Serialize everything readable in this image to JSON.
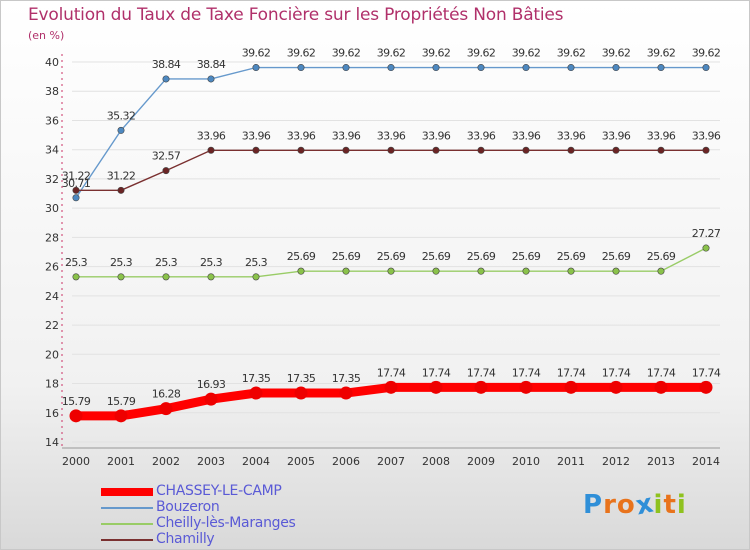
{
  "title": "Evolution du Taux de Taxe Foncière sur les Propriétés Non Bâties",
  "unit_label": "(en %)",
  "brand": {
    "letters": [
      "P",
      "r",
      "o",
      "x",
      "i",
      "t",
      "i"
    ],
    "colors": [
      "#2f8fd8",
      "#e8731c",
      "#e8731c",
      "#2f8fd8",
      "#8fc21f",
      "#e8731c",
      "#8fc21f"
    ]
  },
  "chart_data": {
    "type": "line",
    "title": "Evolution du Taux de Taxe Foncière sur les Propriétés Non Bâties",
    "ylabel": "(en %)",
    "xlabel": "",
    "ylim": [
      14,
      40
    ],
    "yticks": [
      14,
      16,
      18,
      20,
      22,
      24,
      26,
      28,
      30,
      32,
      34,
      36,
      38,
      40
    ],
    "categories": [
      "2000",
      "2001",
      "2002",
      "2003",
      "2004",
      "2005",
      "2006",
      "2007",
      "2008",
      "2009",
      "2010",
      "2011",
      "2012",
      "2013",
      "2014"
    ],
    "series": [
      {
        "name": "Bouzeron",
        "color": "#6699cc",
        "marker": "#4d88c0",
        "thick": false,
        "values": [
          30.71,
          35.32,
          38.84,
          38.84,
          39.62,
          39.62,
          39.62,
          39.62,
          39.62,
          39.62,
          39.62,
          39.62,
          39.62,
          39.62,
          39.62
        ]
      },
      {
        "name": "Chamilly",
        "color": "#7a3030",
        "marker": "#6b2424",
        "thick": false,
        "values": [
          31.22,
          31.22,
          32.57,
          33.96,
          33.96,
          33.96,
          33.96,
          33.96,
          33.96,
          33.96,
          33.96,
          33.96,
          33.96,
          33.96,
          33.96
        ]
      },
      {
        "name": "Cheilly-lès-Maranges",
        "color": "#99cc66",
        "marker": "#8ac24a",
        "thick": false,
        "values": [
          25.3,
          25.3,
          25.3,
          25.3,
          25.3,
          25.69,
          25.69,
          25.69,
          25.69,
          25.69,
          25.69,
          25.69,
          25.69,
          25.69,
          27.27
        ]
      },
      {
        "name": "CHASSEY-LE-CAMP",
        "color": "#ff0000",
        "marker": "#ee0000",
        "thick": true,
        "values": [
          15.79,
          15.79,
          16.28,
          16.93,
          17.35,
          17.35,
          17.35,
          17.74,
          17.74,
          17.74,
          17.74,
          17.74,
          17.74,
          17.74,
          17.74
        ]
      }
    ],
    "point_labels": [
      [
        "30.71",
        "35.32",
        "38.84",
        "38.84",
        "39.62",
        "39.62",
        "39.62",
        "39.62",
        "39.62",
        "39.62",
        "39.62",
        "39.62",
        "39.62",
        "39.62",
        "39.62"
      ],
      [
        "31.22",
        "31.22",
        "32.57",
        "33.96",
        "33.96",
        "33.96",
        "33.96",
        "33.96",
        "33.96",
        "33.96",
        "33.96",
        "33.96",
        "33.96",
        "33.96",
        "33.96"
      ],
      [
        "25.3",
        "25.3",
        "25.3",
        "25.3",
        "25.3",
        "25.69",
        "25.69",
        "25.69",
        "25.69",
        "25.69",
        "25.69",
        "25.69",
        "25.69",
        "25.69",
        "27.27"
      ],
      [
        "15.79",
        "15.79",
        "16.28",
        "16.93",
        "17.35",
        "17.35",
        "17.35",
        "17.74",
        "17.74",
        "17.74",
        "17.74",
        "17.74",
        "17.74",
        "17.74",
        "17.74"
      ]
    ],
    "legend": [
      {
        "label": "CHASSEY-LE-CAMP",
        "color": "#ff0000",
        "thick": true
      },
      {
        "label": "Bouzeron",
        "color": "#6699cc",
        "thick": false
      },
      {
        "label": "Cheilly-lès-Maranges",
        "color": "#99cc66",
        "thick": false
      },
      {
        "label": "Chamilly",
        "color": "#7a3030",
        "thick": false
      }
    ],
    "legend_position": "bottom-left"
  }
}
